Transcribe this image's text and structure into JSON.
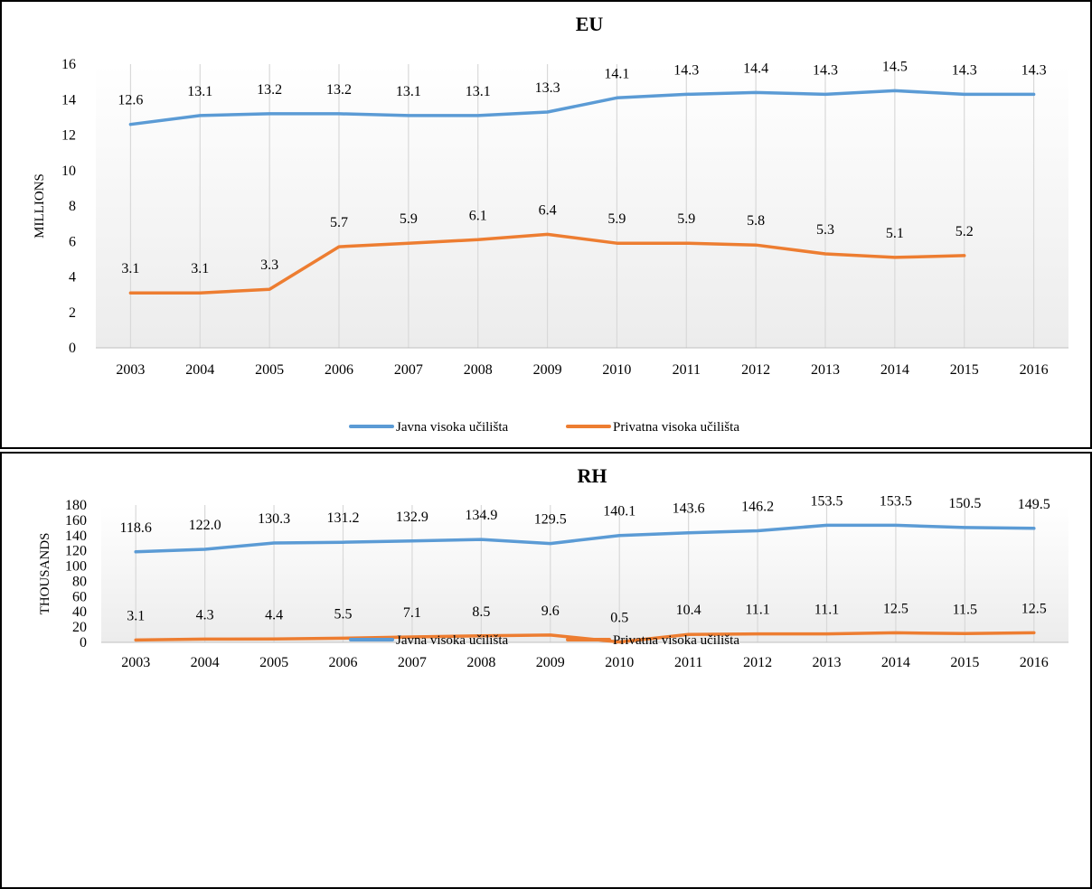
{
  "chart_data": [
    {
      "type": "line",
      "title": "EU",
      "ylabel": "MILLIONS",
      "xlabel": "",
      "ylim": [
        0,
        16
      ],
      "yticks": [
        0,
        2,
        4,
        6,
        8,
        10,
        12,
        14,
        16
      ],
      "grid": "vertical",
      "legend_position": "bottom",
      "categories": [
        "2003",
        "2004",
        "2005",
        "2006",
        "2007",
        "2008",
        "2009",
        "2010",
        "2011",
        "2012",
        "2013",
        "2014",
        "2015",
        "2016"
      ],
      "series": [
        {
          "name": "Javna visoka učilišta",
          "color": "#5b9bd5",
          "values": [
            12.6,
            13.1,
            13.2,
            13.2,
            13.1,
            13.1,
            13.3,
            14.1,
            14.3,
            14.4,
            14.3,
            14.5,
            14.3,
            14.3
          ],
          "labels": [
            "12.6",
            "13.1",
            "13.2",
            "13.2",
            "13.1",
            "13.1",
            "13.3",
            "14.1",
            "14.3",
            "14.4",
            "14.3",
            "14.5",
            "14.3",
            "14.3"
          ]
        },
        {
          "name": "Privatna visoka učilišta",
          "color": "#ed7d31",
          "values": [
            3.1,
            3.1,
            3.3,
            5.7,
            5.9,
            6.1,
            6.4,
            5.9,
            5.9,
            5.8,
            5.3,
            5.1,
            5.2,
            null
          ],
          "labels": [
            "3.1",
            "3.1",
            "3.3",
            "5.7",
            "5.9",
            "6.1",
            "6.4",
            "5.9",
            "5.9",
            "5.8",
            "5.3",
            "5.1",
            "5.2",
            null
          ]
        }
      ]
    },
    {
      "type": "line",
      "title": "RH",
      "ylabel": "THOUSANDS",
      "xlabel": "",
      "ylim": [
        0,
        180
      ],
      "yticks": [
        0,
        20,
        40,
        60,
        80,
        100,
        120,
        140,
        160,
        180
      ],
      "grid": "vertical",
      "legend_position": "bottom",
      "categories": [
        "2003",
        "2004",
        "2005",
        "2006",
        "2007",
        "2008",
        "2009",
        "2010",
        "2011",
        "2012",
        "2013",
        "2014",
        "2015",
        "2016"
      ],
      "series": [
        {
          "name": "Javna visoka učilišta",
          "color": "#5b9bd5",
          "values": [
            118.6,
            122.0,
            130.3,
            131.2,
            132.9,
            134.9,
            129.5,
            140.1,
            143.6,
            146.2,
            153.5,
            153.5,
            150.5,
            149.5
          ],
          "labels": [
            "118.6",
            "122.0",
            "130.3",
            "131.2",
            "132.9",
            "134.9",
            "129.5",
            "140.1",
            "143.6",
            "146.2",
            "153.5",
            "153.5",
            "150.5",
            "149.5"
          ]
        },
        {
          "name": "Privatna visoka učilišta",
          "color": "#ed7d31",
          "values": [
            3.1,
            4.3,
            4.4,
            5.5,
            7.1,
            8.5,
            9.6,
            0.5,
            10.4,
            11.1,
            11.1,
            12.5,
            11.5,
            12.5
          ],
          "labels": [
            "3.1",
            "4.3",
            "4.4",
            "5.5",
            "7.1",
            "8.5",
            "9.6",
            "0.5",
            "10.4",
            "11.1",
            "11.1",
            "12.5",
            "11.5",
            "12.5"
          ]
        }
      ]
    }
  ]
}
